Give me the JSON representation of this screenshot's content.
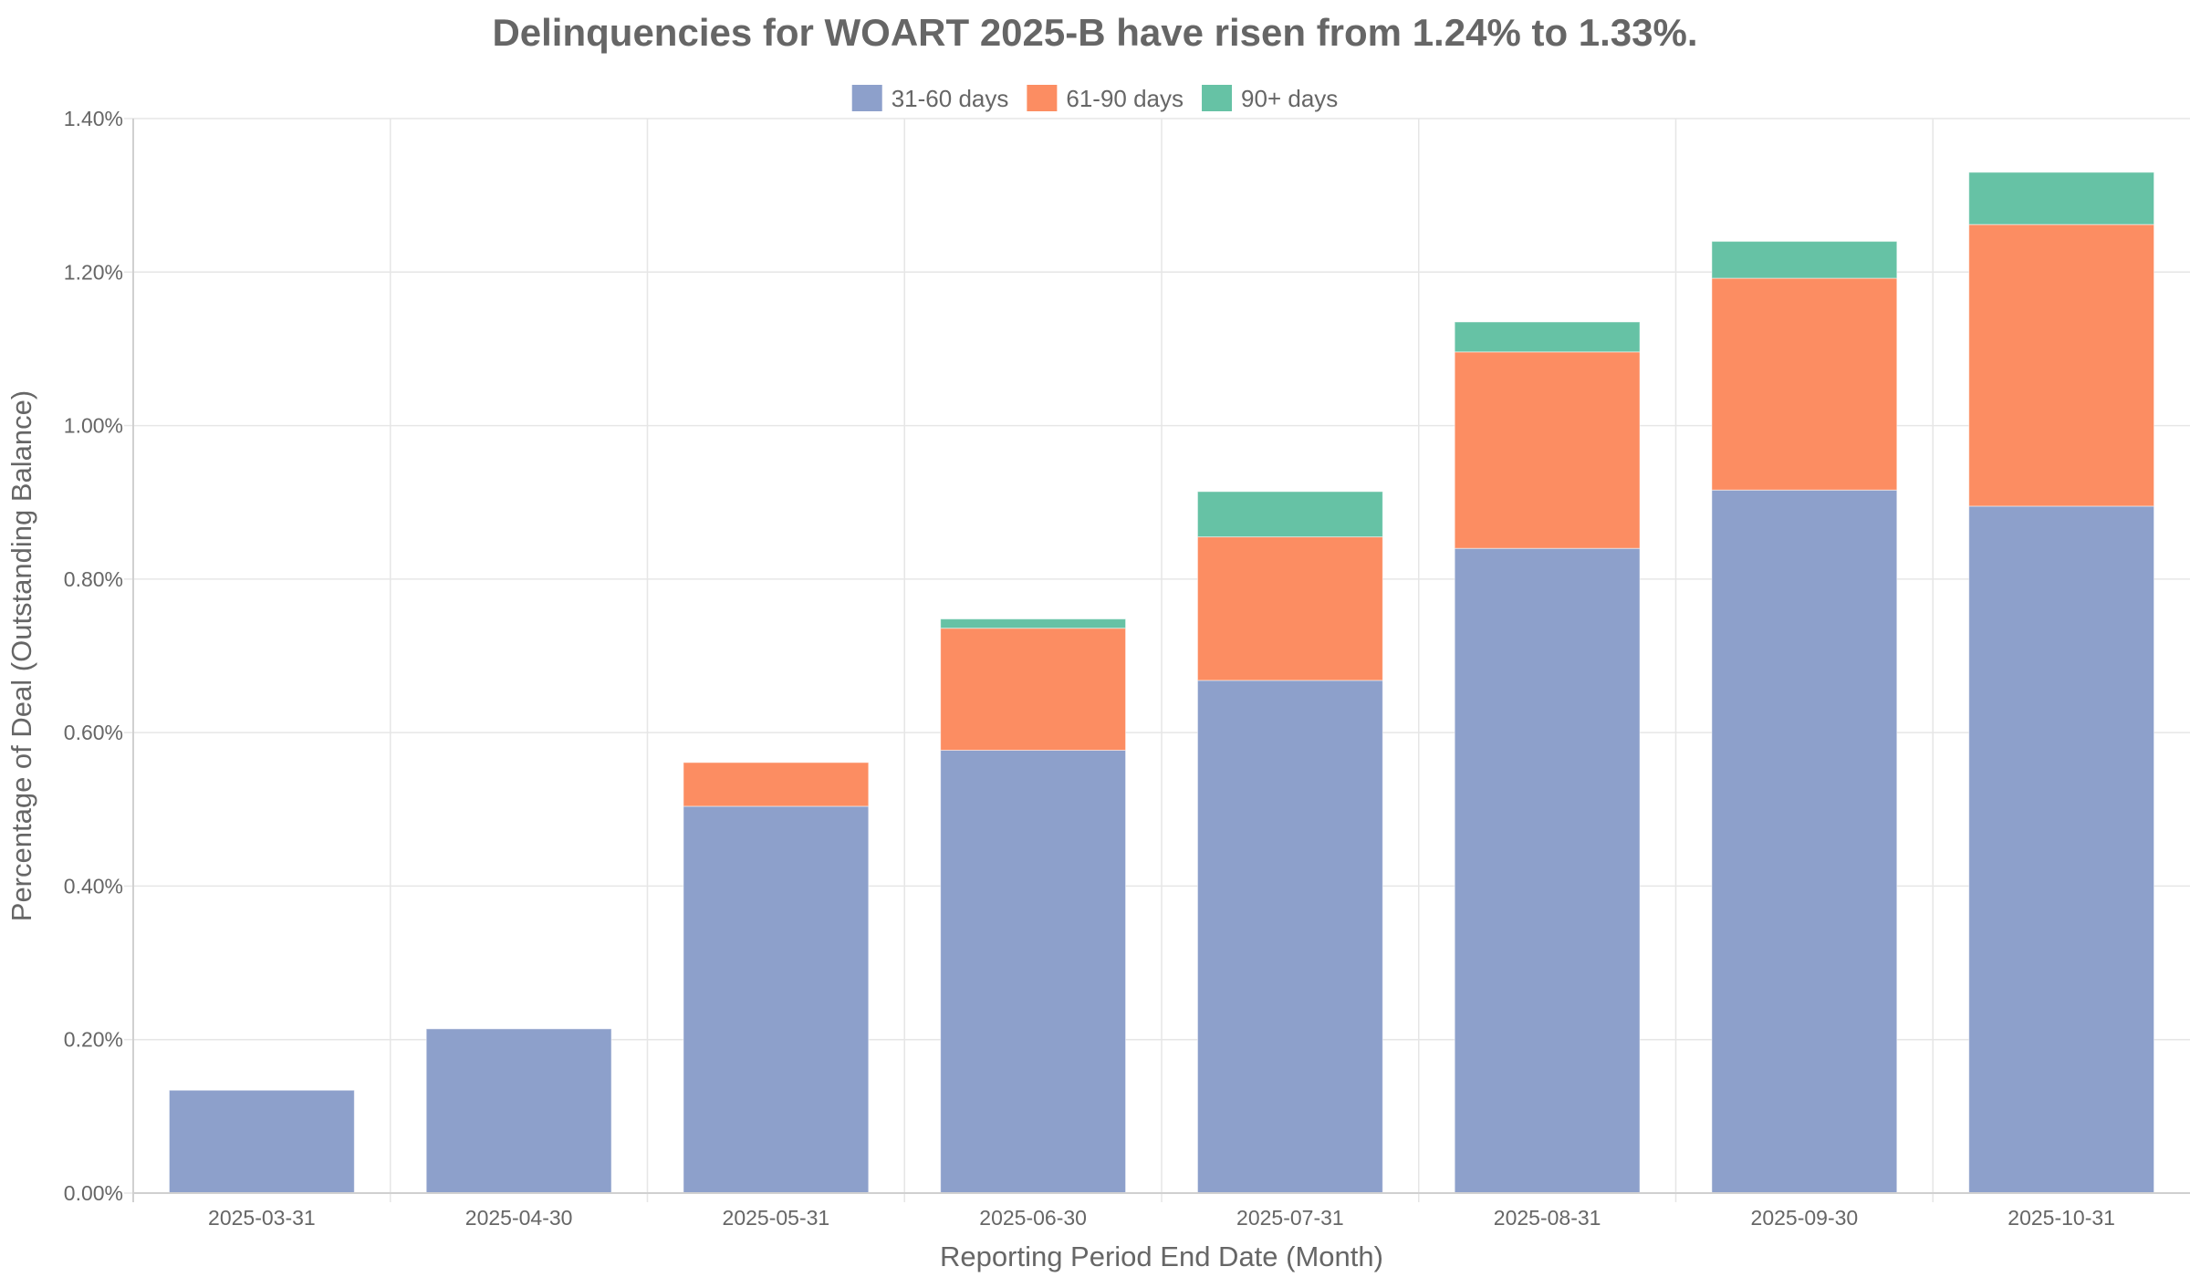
{
  "chart_data": {
    "type": "bar",
    "stacked": true,
    "title": "Delinquencies for WOART 2025-B have risen from 1.24% to 1.33%.",
    "xlabel": "Reporting Period End Date (Month)",
    "ylabel": "Percentage of Deal (Outstanding Balance)",
    "ylim": [
      0,
      1.4
    ],
    "y_unit": "%",
    "yticks": [
      0,
      0.2,
      0.4,
      0.6,
      0.8,
      1.0,
      1.2,
      1.4
    ],
    "ytick_labels": [
      "0.00%",
      "0.20%",
      "0.40%",
      "0.60%",
      "0.80%",
      "1.00%",
      "1.20%",
      "1.40%"
    ],
    "grid": true,
    "legend_position": "top-center",
    "categories": [
      "2025-03-31",
      "2025-04-30",
      "2025-05-31",
      "2025-06-30",
      "2025-07-31",
      "2025-08-31",
      "2025-09-30",
      "2025-10-31"
    ],
    "series": [
      {
        "name": "31-60 days",
        "color": "#8da0cb",
        "values": [
          0.134,
          0.214,
          0.504,
          0.577,
          0.668,
          0.84,
          0.916,
          0.895
        ]
      },
      {
        "name": "61-90 days",
        "color": "#fc8d62",
        "values": [
          0,
          0,
          0.057,
          0.159,
          0.187,
          0.256,
          0.276,
          0.367
        ]
      },
      {
        "name": "90+ days",
        "color": "#66c2a5",
        "values": [
          0,
          0,
          0,
          0.012,
          0.059,
          0.039,
          0.048,
          0.068
        ]
      }
    ]
  }
}
